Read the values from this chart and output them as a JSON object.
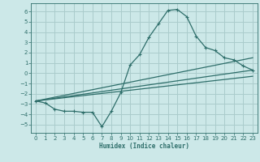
{
  "xlabel": "Humidex (Indice chaleur)",
  "xlim": [
    -0.5,
    23.5
  ],
  "ylim": [
    -5.8,
    6.8
  ],
  "xticks": [
    0,
    1,
    2,
    3,
    4,
    5,
    6,
    7,
    8,
    9,
    10,
    11,
    12,
    13,
    14,
    15,
    16,
    17,
    18,
    19,
    20,
    21,
    22,
    23
  ],
  "yticks": [
    -5,
    -4,
    -3,
    -2,
    -1,
    0,
    1,
    2,
    3,
    4,
    5,
    6
  ],
  "bg_color": "#cce8e8",
  "line_color": "#2e6e6a",
  "grid_color": "#aacccc",
  "line1_x": [
    0,
    1,
    2,
    3,
    4,
    5,
    6,
    7,
    8,
    9,
    10,
    11,
    12,
    13,
    14,
    15,
    16,
    17,
    18,
    19,
    20,
    21,
    22,
    23
  ],
  "line1_y": [
    -2.7,
    -2.9,
    -3.5,
    -3.7,
    -3.7,
    -3.8,
    -3.8,
    -5.2,
    -3.7,
    -1.9,
    0.8,
    1.8,
    3.5,
    4.8,
    6.1,
    6.2,
    5.5,
    3.6,
    2.5,
    2.2,
    1.5,
    1.3,
    0.7,
    0.3
  ],
  "line2_x": [
    0,
    23
  ],
  "line2_y": [
    -2.7,
    0.3
  ],
  "line3_x": [
    0,
    23
  ],
  "line3_y": [
    -2.7,
    1.5
  ],
  "line4_x": [
    0,
    23
  ],
  "line4_y": [
    -2.7,
    -0.3
  ]
}
